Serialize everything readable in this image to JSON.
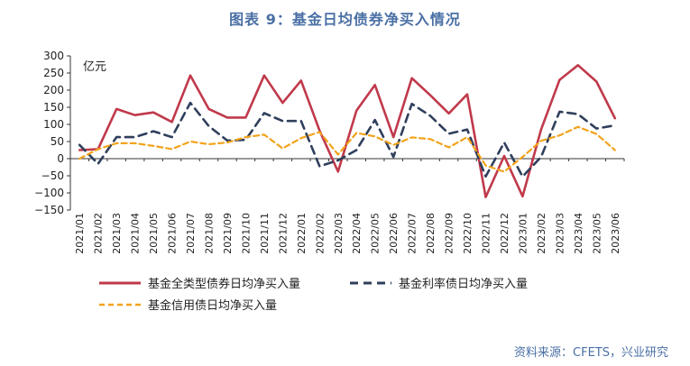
{
  "title": "图表 9：基金日均债券净买入情况",
  "source": "资料来源：CFETS，兴业研究",
  "colors": {
    "series_all": "#c0394b",
    "series_rate": "#2f3f5c",
    "series_credit": "#f2a31b",
    "title": "#4a6fa5"
  },
  "chart_data": {
    "type": "line",
    "title": "图表 9：基金日均债券净买入情况",
    "unit": "亿元",
    "ylim": [
      -150,
      300
    ],
    "yticks": [
      -150,
      -100,
      -50,
      0,
      50,
      100,
      150,
      200,
      250,
      300
    ],
    "grid": false,
    "legend_position": "bottom",
    "categories": [
      "2021/01",
      "2021/02",
      "2021/03",
      "2021/04",
      "2021/05",
      "2021/06",
      "2021/07",
      "2021/08",
      "2021/09",
      "2021/10",
      "2021/11",
      "2021/12",
      "2022/01",
      "2022/02",
      "2022/03",
      "2022/04",
      "2022/05",
      "2022/06",
      "2022/07",
      "2022/08",
      "2022/09",
      "2022/10",
      "2022/11",
      "2022/12",
      "2023/01",
      "2023/02",
      "2023/03",
      "2023/04",
      "2023/05",
      "2023/06"
    ],
    "series": [
      {
        "name": "基金全类型债券日均净买入量",
        "style": "solid",
        "values": [
          25,
          28,
          145,
          127,
          135,
          107,
          243,
          145,
          120,
          120,
          243,
          163,
          228,
          82,
          -38,
          140,
          215,
          63,
          235,
          185,
          132,
          188,
          -112,
          8,
          -110,
          85,
          230,
          273,
          225,
          118
        ]
      },
      {
        "name": "基金利率债日均净买入量",
        "style": "dashed",
        "values": [
          40,
          -15,
          63,
          63,
          80,
          63,
          163,
          95,
          53,
          55,
          133,
          110,
          110,
          -22,
          -5,
          25,
          113,
          5,
          160,
          125,
          73,
          85,
          -52,
          47,
          -52,
          5,
          137,
          130,
          88,
          97
        ]
      },
      {
        "name": "基金信用债日均净买入量",
        "style": "dashed",
        "values": [
          0,
          28,
          45,
          45,
          37,
          28,
          50,
          42,
          47,
          63,
          70,
          30,
          60,
          78,
          12,
          75,
          65,
          40,
          62,
          57,
          33,
          63,
          -20,
          -38,
          5,
          52,
          68,
          93,
          72,
          25
        ]
      }
    ]
  }
}
